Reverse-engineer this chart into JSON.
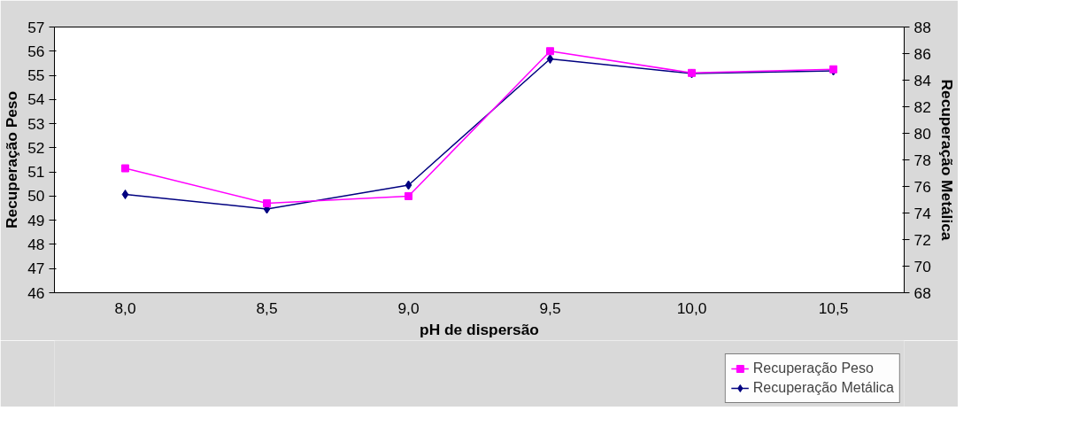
{
  "chart_data": {
    "type": "line",
    "xlabel": "pH de dispersão",
    "ylabel": "Recuperação Peso",
    "y2label": "Recuperação Metálica",
    "categories": [
      "8,0",
      "8,5",
      "9,0",
      "9,5",
      "10,0",
      "10,5"
    ],
    "ylim": [
      46,
      57
    ],
    "yticks": [
      46,
      47,
      48,
      49,
      50,
      51,
      52,
      53,
      54,
      55,
      56,
      57
    ],
    "y2lim": [
      68,
      88
    ],
    "y2ticks": [
      68,
      70,
      72,
      74,
      76,
      78,
      80,
      82,
      84,
      86,
      88
    ],
    "grid": false,
    "legend": "bottom right",
    "line_style": "solid",
    "series": [
      {
        "name": "Recuperação Peso",
        "color": "#ff00ff",
        "marker": "square",
        "values": [
          51.15,
          49.7,
          50.0,
          56.0,
          55.1,
          55.25
        ]
      },
      {
        "name": "Recuperação Metálica",
        "color": "#000080",
        "marker": "diamond",
        "axis": "y2",
        "values": [
          75.4,
          74.3,
          76.1,
          85.6,
          84.5,
          84.7
        ]
      }
    ]
  }
}
